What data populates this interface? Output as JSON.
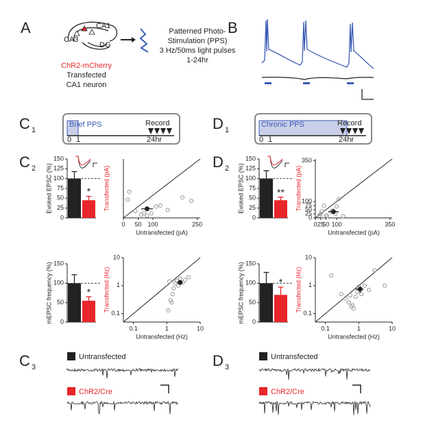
{
  "panels": {
    "a": "A",
    "b": "B",
    "c": "C",
    "d": "D",
    "one": "1",
    "two": "2",
    "three": "3"
  },
  "diagram": {
    "ca1": "CA1",
    "ca3": "CA3",
    "dg": "DG",
    "chr2": "ChR2-mCherry",
    "transfected": "Transfected",
    "neuron": "CA1 neuron",
    "pps_lines": [
      "Patterned Photo-",
      "Stimulation (PPS)",
      "3 Hz/50ms light pulses",
      "1-24hr"
    ]
  },
  "timeline_c": {
    "label": "Brief PPS",
    "record": "Record",
    "start": "0",
    "one": "1",
    "end": "24hr"
  },
  "timeline_d": {
    "label": "Chronic PPS",
    "record": "Record",
    "start": "0",
    "one": "1",
    "end": "24hr"
  },
  "legend_c": [
    "Untransfected",
    "ChR2/Cre"
  ],
  "legend_d": [
    "Untransfected",
    "ChR2/Cre"
  ],
  "chart_data": [
    {
      "type": "bar",
      "ylabel": "Evoked EPSC (%)",
      "values": [
        100,
        45
      ],
      "errors": [
        18,
        10
      ],
      "colors": [
        "#222222",
        "#e8262a"
      ],
      "ylim": [
        0,
        150
      ],
      "yticks": [
        0,
        25,
        50,
        75,
        100,
        125,
        150
      ],
      "annotation": "*"
    },
    {
      "type": "scatter",
      "xlabel": "Untransfected (pA)",
      "ylabel": "Transfected (pA)",
      "log": false,
      "x": [
        15,
        20,
        40,
        60,
        70,
        80,
        95,
        110,
        125,
        150,
        200,
        230
      ],
      "y": [
        80,
        115,
        30,
        15,
        20,
        10,
        20,
        50,
        55,
        35,
        90,
        75
      ],
      "mean": {
        "x": 80,
        "y": 40,
        "xerr": 20,
        "yerr": 8
      },
      "xlim": [
        0,
        260
      ],
      "ylim": [
        0,
        260
      ],
      "xticks": [
        0,
        50,
        100,
        250
      ]
    },
    {
      "type": "bar",
      "ylabel": "mEPSC frequency (%)",
      "values": [
        100,
        55
      ],
      "errors": [
        22,
        10
      ],
      "colors": [
        "#222222",
        "#e8262a"
      ],
      "ylim": [
        0,
        150
      ],
      "yticks": [
        0,
        50,
        100,
        150
      ],
      "annotation": "*"
    },
    {
      "type": "scatter",
      "xlabel": "Untransfected (Hz)",
      "ylabel": "Transfected (Hz)",
      "log": true,
      "x": [
        1.1,
        1.3,
        1.5,
        1.6,
        1.8,
        2.0,
        2.2,
        2.5,
        3.0,
        3.5,
        1.2,
        1.4,
        4.5
      ],
      "y": [
        0.13,
        0.3,
        0.5,
        0.8,
        1.2,
        1.5,
        1.0,
        1.8,
        1.3,
        1.6,
        1.4,
        0.25,
        2.0
      ],
      "mean": {
        "x": 2.5,
        "y": 1.3,
        "xerr": 0.5,
        "yerr": 0.2
      },
      "xlim": [
        0.05,
        10
      ],
      "ylim": [
        0.05,
        10
      ],
      "xticks": [
        0.1,
        1,
        10
      ],
      "yticks": [
        0.1,
        1,
        10
      ]
    },
    {
      "type": "bar",
      "ylabel": "Evoked EPSC (%)",
      "values": [
        100,
        45
      ],
      "errors": [
        20,
        8
      ],
      "colors": [
        "#222222",
        "#e8262a"
      ],
      "ylim": [
        0,
        150
      ],
      "yticks": [
        0,
        25,
        50,
        75,
        100,
        125,
        150
      ],
      "annotation": "**"
    },
    {
      "type": "scatter",
      "xlabel": "Untransfected (pA)",
      "ylabel": "Transfected (pA)",
      "log": false,
      "x": [
        20,
        25,
        30,
        40,
        50,
        55,
        75,
        80,
        95,
        100,
        110,
        130
      ],
      "y": [
        15,
        25,
        40,
        75,
        15,
        10,
        35,
        45,
        25,
        70,
        115,
        10
      ],
      "mean": {
        "x": 85,
        "y": 38,
        "xerr": 25,
        "yerr": 6
      },
      "xlim": [
        0,
        360
      ],
      "ylim": [
        0,
        360
      ],
      "xticks": [
        0,
        25,
        50,
        100,
        350
      ],
      "yticks": [
        0,
        25,
        50,
        75,
        100,
        350
      ]
    },
    {
      "type": "bar",
      "ylabel": "mEPSC frequency (%)",
      "values": [
        100,
        70
      ],
      "errors": [
        28,
        20
      ],
      "colors": [
        "#222222",
        "#e8262a"
      ],
      "ylim": [
        0,
        150
      ],
      "yticks": [
        0,
        50,
        100,
        150
      ],
      "annotation": "*"
    },
    {
      "type": "scatter",
      "xlabel": "Untransfected (Hz)",
      "ylabel": "Transfected (Hz)",
      "log": true,
      "x": [
        0.15,
        0.3,
        0.4,
        0.5,
        0.6,
        0.7,
        0.8,
        0.9,
        1.0,
        1.2,
        1.5,
        2.0,
        3.0,
        6.0,
        0.55,
        0.65
      ],
      "y": [
        2.3,
        0.5,
        0.35,
        0.25,
        0.18,
        0.15,
        0.4,
        0.6,
        0.9,
        0.5,
        1.0,
        0.7,
        3.5,
        1.0,
        0.45,
        0.2
      ],
      "mean": {
        "x": 1.1,
        "y": 0.75,
        "xerr": 0.3,
        "yerr": 0.2
      },
      "xlim": [
        0.05,
        10
      ],
      "ylim": [
        0.05,
        10
      ],
      "xticks": [
        0.1,
        1,
        10
      ],
      "yticks": [
        0.1,
        1,
        10
      ]
    }
  ]
}
